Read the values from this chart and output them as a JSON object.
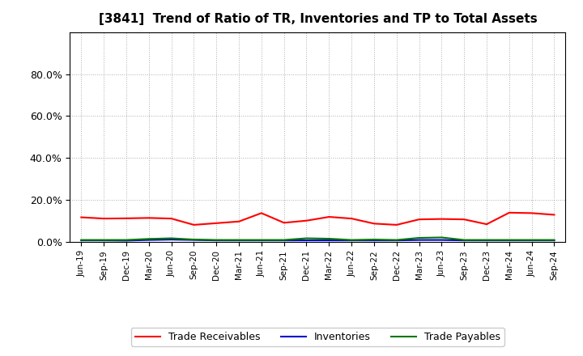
{
  "title": "[3841]  Trend of Ratio of TR, Inventories and TP to Total Assets",
  "x_labels": [
    "Jun-19",
    "Sep-19",
    "Dec-19",
    "Mar-20",
    "Jun-20",
    "Sep-20",
    "Dec-20",
    "Mar-21",
    "Jun-21",
    "Sep-21",
    "Dec-21",
    "Mar-22",
    "Jun-22",
    "Sep-22",
    "Dec-22",
    "Mar-23",
    "Jun-23",
    "Sep-23",
    "Dec-23",
    "Mar-24",
    "Jun-24",
    "Sep-24"
  ],
  "trade_receivables": [
    0.118,
    0.112,
    0.113,
    0.115,
    0.112,
    0.082,
    0.09,
    0.098,
    0.138,
    0.092,
    0.102,
    0.12,
    0.112,
    0.088,
    0.082,
    0.108,
    0.11,
    0.108,
    0.085,
    0.14,
    0.138,
    0.13
  ],
  "inventories": [
    0.008,
    0.008,
    0.007,
    0.01,
    0.012,
    0.01,
    0.008,
    0.008,
    0.008,
    0.008,
    0.008,
    0.008,
    0.008,
    0.008,
    0.008,
    0.01,
    0.01,
    0.008,
    0.008,
    0.008,
    0.008,
    0.008
  ],
  "trade_payables": [
    0.01,
    0.01,
    0.01,
    0.015,
    0.018,
    0.012,
    0.01,
    0.01,
    0.01,
    0.01,
    0.018,
    0.016,
    0.01,
    0.012,
    0.01,
    0.02,
    0.022,
    0.01,
    0.01,
    0.01,
    0.01,
    0.01
  ],
  "tr_color": "#FF0000",
  "inv_color": "#0000CC",
  "tp_color": "#007700",
  "ylim": [
    0.0,
    1.0
  ],
  "yticks": [
    0.0,
    0.2,
    0.4,
    0.6,
    0.8
  ],
  "background_color": "#FFFFFF",
  "grid_color": "#999999",
  "legend_labels": [
    "Trade Receivables",
    "Inventories",
    "Trade Payables"
  ]
}
